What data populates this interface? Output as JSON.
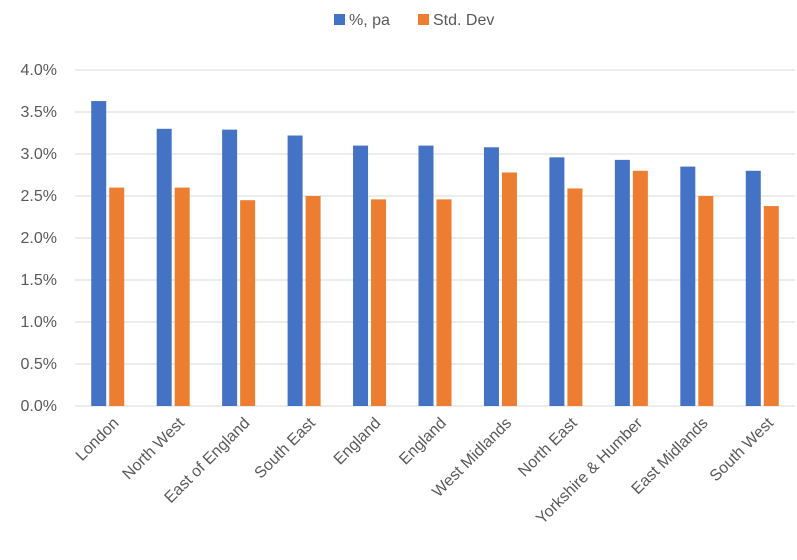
{
  "chart_data": {
    "type": "bar",
    "title": "",
    "xlabel": "",
    "ylabel": "",
    "ylim": [
      0,
      4.0
    ],
    "y_ticks": [
      "0.0%",
      "0.5%",
      "1.0%",
      "1.5%",
      "2.0%",
      "2.5%",
      "3.0%",
      "3.5%",
      "4.0%"
    ],
    "grid": true,
    "legend_position": "top",
    "categories": [
      "London",
      "North West",
      "East of England",
      "South East",
      "England",
      "England",
      "West Midlands",
      "North East",
      "Yorkshire & Humber",
      "East Midlands",
      "South West"
    ],
    "series": [
      {
        "name": "%, pa",
        "color": "#4472c4",
        "values": [
          3.63,
          3.3,
          3.29,
          3.22,
          3.1,
          3.1,
          3.08,
          2.96,
          2.93,
          2.85,
          2.8
        ]
      },
      {
        "name": "Std. Dev",
        "color": "#ed7d31",
        "values": [
          2.6,
          2.6,
          2.45,
          2.5,
          2.46,
          2.46,
          2.78,
          2.59,
          2.8,
          2.5,
          2.38
        ]
      }
    ]
  }
}
